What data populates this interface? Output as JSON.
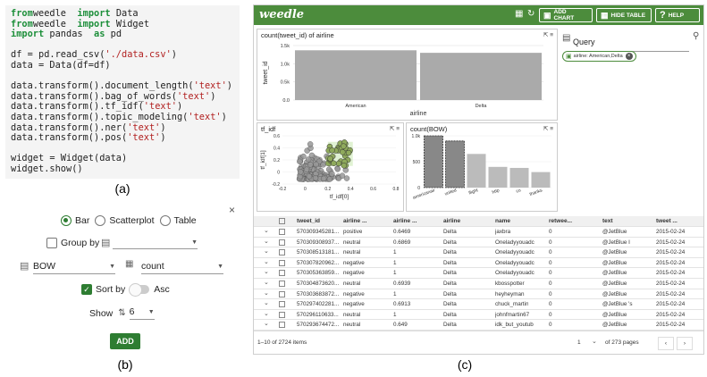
{
  "code": {
    "lines": [
      [
        [
          "kw",
          "from"
        ],
        [
          "",
          "weedle "
        ],
        [
          "kw",
          "import"
        ],
        [
          "",
          " Data"
        ]
      ],
      [
        [
          "kw",
          "from"
        ],
        [
          "",
          "weedle "
        ],
        [
          "kw",
          "import"
        ],
        [
          "",
          " Widget"
        ]
      ],
      [
        [
          "kw",
          "import"
        ],
        [
          "",
          " pandas "
        ],
        [
          "kw",
          "as"
        ],
        [
          "",
          " pd"
        ]
      ],
      [],
      [
        [
          "",
          "df = pd.read_csv("
        ],
        [
          "str",
          "'./data.csv'"
        ],
        [
          "",
          ")"
        ]
      ],
      [
        [
          "",
          "data = Data(df=df)"
        ]
      ],
      [],
      [
        [
          "",
          "data.transform().document_length("
        ],
        [
          "str",
          "'text'"
        ],
        [
          "",
          ")"
        ]
      ],
      [
        [
          "",
          "data.transform().bag_of_words("
        ],
        [
          "str",
          "'text'"
        ],
        [
          "",
          ")"
        ]
      ],
      [
        [
          "",
          "data.transform().tf_idf("
        ],
        [
          "str",
          "'text'"
        ],
        [
          "",
          ")"
        ]
      ],
      [
        [
          "",
          "data.transform().topic_modeling("
        ],
        [
          "str",
          "'text'"
        ],
        [
          "",
          ")"
        ]
      ],
      [
        [
          "",
          "data.transform().ner("
        ],
        [
          "str",
          "'text'"
        ],
        [
          "",
          ")"
        ]
      ],
      [
        [
          "",
          "data.transform().pos("
        ],
        [
          "str",
          "'text'"
        ],
        [
          "",
          ")"
        ]
      ],
      [],
      [
        [
          "",
          "widget = Widget(data)"
        ]
      ],
      [
        [
          "",
          "widget.show()"
        ]
      ]
    ]
  },
  "captions": {
    "a": "(a)",
    "b": "(b)",
    "c": "(c)"
  },
  "controls": {
    "close": "×",
    "chart_types": [
      "Bar",
      "Scatterplot",
      "Table"
    ],
    "selected_chart_type": "Bar",
    "group_by_label": "Group by",
    "column_value": "BOW",
    "aggregate_value": "count",
    "sort_by_label": "Sort by",
    "asc_label": "Asc",
    "show_label": "Show",
    "show_value": "6",
    "add_label": "ADD"
  },
  "header": {
    "brand": "weedle",
    "add_chart": "ADD CHART",
    "hide_table": "HIDE TABLE",
    "help": "HELP"
  },
  "query": {
    "label": "Query",
    "chip": "airline: American,Delta"
  },
  "cards": {
    "top": {
      "title": "count(tweet_id) of airline",
      "chart_data": {
        "type": "bar",
        "categories": [
          "American",
          "Delta"
        ],
        "values": [
          1370,
          1300
        ],
        "xlabel": "airline",
        "ylabel": "tweet_id",
        "ylim": [
          0,
          1500
        ],
        "yticks": [
          "0.0",
          "0.5k",
          "1.0k",
          "1.5k"
        ]
      }
    },
    "tfidf": {
      "title": "tf_idf",
      "chart_data": {
        "type": "scatter",
        "xlabel": "tf_idf[0]",
        "ylabel": "tf_idf[1]",
        "xlim": [
          -0.2,
          0.8
        ],
        "ylim": [
          -0.2,
          0.6
        ],
        "xticks": [
          "-0.2",
          "0",
          "0.2",
          "0.4",
          "0.6",
          "0.8"
        ],
        "yticks": [
          "-0.2",
          "0",
          "0.2",
          "0.4",
          "0.6"
        ],
        "selection": {
          "x": [
            0.2,
            0.42
          ],
          "y": [
            0.1,
            0.5
          ]
        }
      }
    },
    "bow": {
      "title": "count(BOW)",
      "chart_data": {
        "type": "bar",
        "categories": [
          "americanair",
          "united",
          "flight",
          "http",
          "co",
          "thanks"
        ],
        "values": [
          1050,
          900,
          650,
          400,
          380,
          300
        ],
        "ylim": [
          0,
          1000
        ],
        "yticks": [
          "0",
          "500",
          "1.0k"
        ]
      }
    }
  },
  "table": {
    "columns": [
      "tweet_id",
      "airline ...",
      "airline ...",
      "airline",
      "name",
      "retwee...",
      "text",
      "tweet ..."
    ],
    "rows": [
      [
        "570309345281...",
        "positive",
        "0.6469",
        "Delta",
        "jaxbra",
        "0",
        "@JetBlue",
        "2015-02-24"
      ],
      [
        "570309308937...",
        "neutral",
        "0.6869",
        "Delta",
        "Oneladyyouadc",
        "0",
        "@JetBlue I",
        "2015-02-24"
      ],
      [
        "570308513181...",
        "neutral",
        "1",
        "Delta",
        "Oneladyyouadc",
        "0",
        "@JetBlue",
        "2015-02-24"
      ],
      [
        "570307820962...",
        "negative",
        "1",
        "Delta",
        "Oneladyyouadc",
        "0",
        "@JetBlue",
        "2015-02-24"
      ],
      [
        "570305363859...",
        "negative",
        "1",
        "Delta",
        "Oneladyyouadc",
        "0",
        "@JetBlue",
        "2015-02-24"
      ],
      [
        "570304873620...",
        "neutral",
        "0.6939",
        "Delta",
        "kbosspotter",
        "0",
        "@JetBlue",
        "2015-02-24"
      ],
      [
        "570303683872...",
        "negative",
        "1",
        "Delta",
        "heyheyman",
        "0",
        "@JetBlue",
        "2015-02-24"
      ],
      [
        "570297402281...",
        "negative",
        "0.6913",
        "Delta",
        "chuck_martin",
        "0",
        "@JetBlue 's",
        "2015-02-24"
      ],
      [
        "570296110633...",
        "neutral",
        "1",
        "Delta",
        "johnfmartin67",
        "0",
        "@JetBlue",
        "2015-02-24"
      ],
      [
        "570293674472...",
        "neutral",
        "0.649",
        "Delta",
        "idk_but_youtub",
        "0",
        "@JetBlue",
        "2015-02-24"
      ]
    ],
    "footer_count": "1–10 of 2724 items",
    "page": "1",
    "page_total": "of 273 pages",
    "prev": "‹",
    "next": "›"
  }
}
